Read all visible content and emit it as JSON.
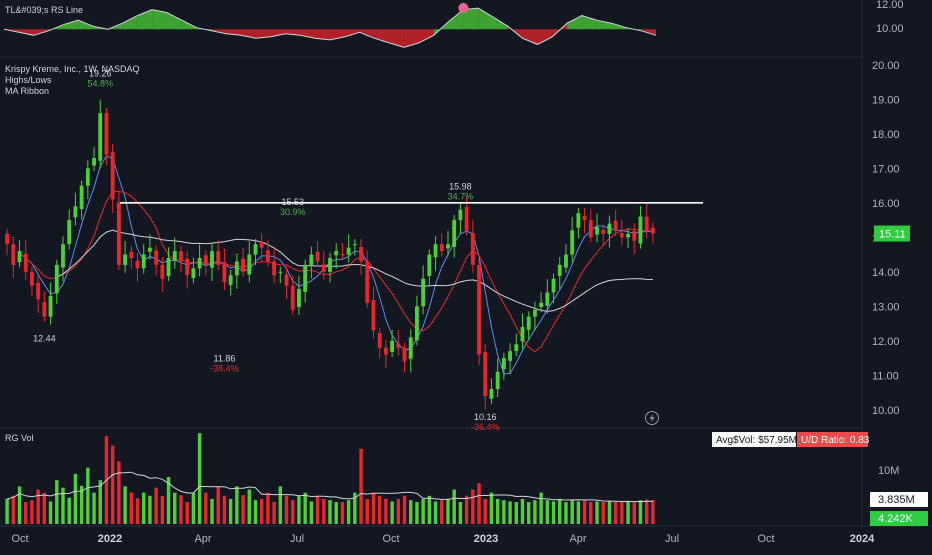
{
  "header": {
    "symbol_line": "Krispy Kreme, Inc., 1W, NASDAQ",
    "indicators": [
      "Highs/Lows",
      "MA Ribbon"
    ]
  },
  "rs_pane": {
    "label": "TL&#039;s RS Line",
    "axis_ticks": [
      "12.00",
      "10.00"
    ]
  },
  "vol_pane": {
    "label": "RG Vol",
    "avg_vol_label": "Avg$Vol: $57.95M",
    "ud_ratio_label": "U/D Ratio: 0.83",
    "axis_ticks": [
      "10M"
    ],
    "last_volume_label": "3.835M",
    "avg_volume_label": "4.242K"
  },
  "colors": {
    "background": "#131722",
    "up": "#4cd137",
    "down": "#e8262b",
    "ma_fast": "#5b8def",
    "ma_mid": "#e8262b",
    "ma_slow": "#d1d4dc",
    "resistance": "#ffffff",
    "price_tag": "#2ecc40",
    "ud_tag": "#e94b4b",
    "vol_tag": "#2ecc40"
  },
  "chart_data": {
    "type": "candlestick",
    "price_axis": {
      "ticks": [
        "20.00",
        "19.00",
        "18.00",
        "17.00",
        "16.00",
        "15.00",
        "14.00",
        "13.00",
        "12.00",
        "11.00",
        "10.00"
      ],
      "range": [
        9.5,
        20.2
      ],
      "last_price": "15.11"
    },
    "time_axis": {
      "labels": [
        {
          "text": "Oct",
          "bold": false
        },
        {
          "text": "2022",
          "bold": true
        },
        {
          "text": "Apr",
          "bold": false
        },
        {
          "text": "Jul",
          "bold": false
        },
        {
          "text": "Oct",
          "bold": false
        },
        {
          "text": "2023",
          "bold": true
        },
        {
          "text": "Apr",
          "bold": false
        },
        {
          "text": "Jul",
          "bold": false
        },
        {
          "text": "Oct",
          "bold": false
        },
        {
          "text": "2024",
          "bold": true
        }
      ]
    },
    "highs_lows": [
      {
        "price": "19.26",
        "change": "54.8%",
        "kind": "high"
      },
      {
        "price": "12.44",
        "change": "",
        "kind": "low"
      },
      {
        "price": "11.86",
        "change": "-38.4%",
        "kind": "low"
      },
      {
        "price": "15.53",
        "change": "30.9%",
        "kind": "high"
      },
      {
        "price": "15.98",
        "change": "34.7%",
        "kind": "high"
      },
      {
        "price": "10.16",
        "change": "-36.4%",
        "kind": "low"
      }
    ],
    "resistance_level": 16.0,
    "closes": [
      14.8,
      14.2,
      14.6,
      14.0,
      13.6,
      13.2,
      12.7,
      13.3,
      14.2,
      14.8,
      15.5,
      15.9,
      16.5,
      17.0,
      17.3,
      18.6,
      17.4,
      16.1,
      14.2,
      14.5,
      14.4,
      14.1,
      14.5,
      14.7,
      14.2,
      13.8,
      14.4,
      14.6,
      14.3,
      13.9,
      14.1,
      14.4,
      14.2,
      14.6,
      14.2,
      13.7,
      13.9,
      14.3,
      14.0,
      14.5,
      14.8,
      14.7,
      14.3,
      13.9,
      14.0,
      13.6,
      12.9,
      13.5,
      14.2,
      14.5,
      14.3,
      14.0,
      14.4,
      14.6,
      14.5,
      14.7,
      14.8,
      14.3,
      13.1,
      12.3,
      11.8,
      11.6,
      12.0,
      11.8,
      11.4,
      12.1,
      13.0,
      13.8,
      14.5,
      14.8,
      14.6,
      14.8,
      15.5,
      15.8,
      15.2,
      14.2,
      11.6,
      10.4,
      10.6,
      11.1,
      11.5,
      11.7,
      11.9,
      12.4,
      12.7,
      12.9,
      13.1,
      13.4,
      13.8,
      14.2,
      14.5,
      15.2,
      15.7,
      15.5,
      15.0,
      15.3,
      15.1,
      15.4,
      15.2,
      15.0,
      15.1,
      14.9,
      15.6,
      15.2,
      15.11
    ],
    "rs_line": [
      11.0,
      10.8,
      10.6,
      10.9,
      11.3,
      11.6,
      11.2,
      11.0,
      11.4,
      11.9,
      12.3,
      12.1,
      11.6,
      11.1,
      10.9,
      10.7,
      10.6,
      10.4,
      10.5,
      10.7,
      10.6,
      10.4,
      10.3,
      10.5,
      10.8,
      10.4,
      10.1,
      9.8,
      10.1,
      10.6,
      11.5,
      12.3,
      12.4,
      11.8,
      11.2,
      10.4,
      10.0,
      10.5,
      11.4,
      11.9,
      11.6,
      11.4,
      11.1,
      10.9,
      10.6
    ],
    "volume": [
      4.0,
      4.5,
      6.0,
      3.5,
      3.8,
      5.5,
      5.0,
      3.6,
      7.0,
      5.8,
      4.2,
      8.0,
      6.1,
      9.0,
      5.0,
      7.0,
      14.0,
      12.5,
      10.0,
      6.0,
      5.0,
      4.1,
      5.0,
      4.5,
      5.8,
      4.5,
      7.5,
      5.0,
      4.6,
      3.5,
      5.0,
      14.5,
      5.0,
      4.0,
      6.0,
      4.5,
      4.0,
      6.0,
      4.6,
      5.5,
      3.8,
      4.0,
      5.0,
      3.5,
      6.0,
      4.5,
      3.8,
      4.5,
      5.0,
      3.6,
      4.5,
      4.0,
      3.8,
      3.5,
      3.5,
      3.8,
      5.0,
      12.0,
      4.0,
      5.0,
      4.5,
      4.0,
      3.6,
      4.0,
      4.5,
      3.8,
      3.5,
      4.0,
      4.5,
      3.6,
      3.8,
      4.0,
      5.5,
      3.5,
      4.5,
      5.5,
      6.5,
      4.0,
      5.0,
      4.0,
      3.8,
      3.6,
      3.5,
      4.0,
      3.5,
      3.8,
      5.0,
      3.8,
      3.6,
      4.0,
      3.5,
      3.8,
      3.6,
      3.8,
      3.5,
      3.6,
      3.5,
      3.6,
      3.5,
      3.5,
      3.6,
      3.5,
      3.8,
      3.9,
      3.835
    ],
    "vol_range": [
      0,
      15
    ]
  }
}
